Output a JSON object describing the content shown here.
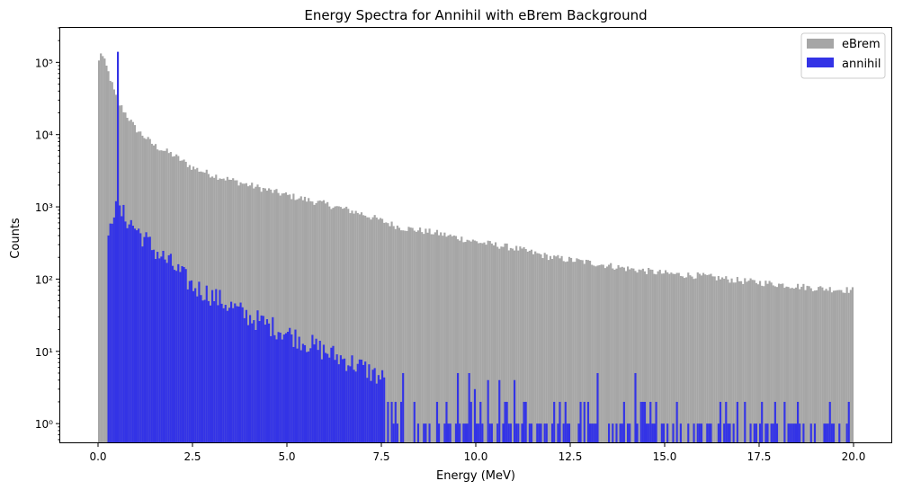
{
  "chart_data": {
    "type": "bar",
    "title": "Energy Spectra for Annihil with eBrem Background",
    "xlabel": "Energy (MeV)",
    "ylabel": "Counts",
    "xlim": [
      -1.0,
      21.0
    ],
    "ylim": [
      0.55,
      300000
    ],
    "yscale": "log",
    "bins": 400,
    "bin_range": [
      0,
      20
    ],
    "x_ticks": [
      0.0,
      2.5,
      5.0,
      7.5,
      10.0,
      12.5,
      15.0,
      17.5,
      20.0
    ],
    "x_tick_labels": [
      "0.0",
      "2.5",
      "5.0",
      "7.5",
      "10.0",
      "12.5",
      "15.0",
      "17.5",
      "20.0"
    ],
    "y_ticks": [
      1,
      10,
      100,
      1000,
      10000,
      100000
    ],
    "y_tick_labels": [
      "10⁰",
      "10¹",
      "10²",
      "10³",
      "10⁴",
      "10⁵"
    ],
    "legend_position": "top-right",
    "series": [
      {
        "name": "eBrem",
        "color": "#a6a6a6",
        "model": "continuum",
        "anchors": [
          [
            0.0,
            70000
          ],
          [
            0.05,
            150000
          ],
          [
            0.25,
            80000
          ],
          [
            0.5,
            30000
          ],
          [
            1.0,
            12000
          ],
          [
            1.5,
            7000
          ],
          [
            2.0,
            5200
          ],
          [
            2.5,
            3500
          ],
          [
            3.0,
            2800
          ],
          [
            4.0,
            2000
          ],
          [
            5.0,
            1450
          ],
          [
            6.0,
            1100
          ],
          [
            7.0,
            800
          ],
          [
            8.0,
            520
          ],
          [
            9.0,
            430
          ],
          [
            10.0,
            330
          ],
          [
            11.0,
            270
          ],
          [
            12.0,
            200
          ],
          [
            13.0,
            170
          ],
          [
            14.0,
            140
          ],
          [
            15.0,
            120
          ],
          [
            16.0,
            110
          ],
          [
            17.0,
            95
          ],
          [
            18.0,
            85
          ],
          [
            19.0,
            75
          ],
          [
            20.0,
            70
          ]
        ]
      },
      {
        "name": "annihil",
        "color": "#3333e6",
        "model": "sparse",
        "start": 0.25,
        "peak": [
          0.511,
          140000
        ],
        "anchors": [
          [
            0.25,
            150
          ],
          [
            0.3,
            700
          ],
          [
            0.45,
            900
          ],
          [
            0.6,
            850
          ],
          [
            1.0,
            500
          ],
          [
            1.5,
            250
          ],
          [
            2.0,
            150
          ],
          [
            2.5,
            80
          ],
          [
            3.0,
            60
          ],
          [
            4.0,
            30
          ],
          [
            5.0,
            18
          ],
          [
            6.0,
            10
          ],
          [
            7.0,
            6
          ],
          [
            8.0,
            3
          ],
          [
            9.0,
            2
          ],
          [
            10.0,
            1.5
          ],
          [
            12.0,
            1.2
          ],
          [
            20.0,
            1
          ]
        ]
      }
    ]
  }
}
